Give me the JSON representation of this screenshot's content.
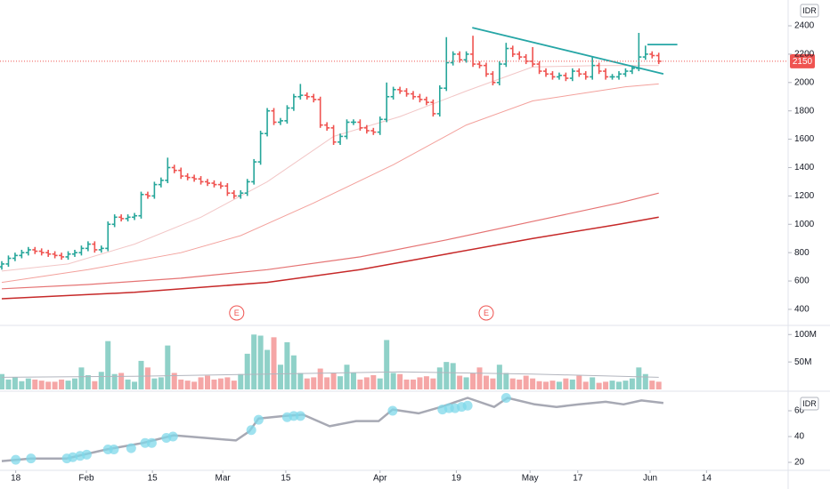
{
  "chart_data": [
    {
      "type": "ohlc",
      "unit": "IDR",
      "up_color": "#26a69a",
      "down_color": "#ef5350",
      "xlim": [
        -0.27,
        118.5
      ],
      "ylim": [
        293,
        2582
      ],
      "yticks": [
        400,
        600,
        800,
        1000,
        1200,
        1400,
        1600,
        1800,
        2000,
        2200,
        2400
      ],
      "open": [
        700,
        720,
        760,
        780,
        800,
        820,
        810,
        800,
        790,
        780,
        770,
        790,
        800,
        830,
        860,
        820,
        830,
        1000,
        1050,
        1040,
        1050,
        1060,
        1210,
        1200,
        1280,
        1310,
        1400,
        1380,
        1340,
        1330,
        1320,
        1300,
        1290,
        1280,
        1270,
        1220,
        1200,
        1220,
        1300,
        1440,
        1640,
        1800,
        1720,
        1730,
        1820,
        1900,
        1910,
        1900,
        1880,
        1700,
        1680,
        1580,
        1620,
        1720,
        1720,
        1680,
        1660,
        1650,
        1740,
        1900,
        1950,
        1940,
        1920,
        1900,
        1880,
        1860,
        1780,
        1960,
        2140,
        2200,
        2160,
        2200,
        2130,
        2120,
        2060,
        2000,
        2130,
        2240,
        2200,
        2180,
        2150,
        2130,
        2080,
        2060,
        2040,
        2050,
        2030,
        2080,
        2060,
        2040,
        2120,
        2080,
        2040,
        2040,
        2060,
        2080,
        2100,
        2180,
        2200,
        2190
      ],
      "high": [
        740,
        780,
        800,
        820,
        840,
        840,
        830,
        820,
        810,
        800,
        810,
        820,
        850,
        880,
        880,
        850,
        1020,
        1070,
        1070,
        1070,
        1080,
        1230,
        1230,
        1300,
        1330,
        1470,
        1420,
        1400,
        1360,
        1350,
        1340,
        1320,
        1310,
        1300,
        1290,
        1240,
        1240,
        1320,
        1460,
        1660,
        1820,
        1820,
        1750,
        1840,
        1920,
        1990,
        1930,
        1920,
        1900,
        1720,
        1700,
        1640,
        1740,
        1740,
        1740,
        1700,
        1680,
        1760,
        2000,
        1970,
        1970,
        1960,
        1940,
        1920,
        1900,
        1880,
        1980,
        2320,
        2220,
        2220,
        2220,
        2330,
        2150,
        2140,
        2080,
        2150,
        2280,
        2260,
        2220,
        2200,
        2250,
        2150,
        2100,
        2080,
        2070,
        2070,
        2100,
        2100,
        2080,
        2180,
        2140,
        2100,
        2060,
        2080,
        2100,
        2120,
        2350,
        2260,
        2220,
        2210
      ],
      "low": [
        680,
        700,
        740,
        760,
        780,
        790,
        780,
        770,
        760,
        750,
        750,
        770,
        780,
        810,
        800,
        800,
        810,
        980,
        1020,
        1020,
        1030,
        1040,
        1180,
        1180,
        1260,
        1290,
        1360,
        1320,
        1310,
        1300,
        1280,
        1270,
        1260,
        1250,
        1200,
        1180,
        1180,
        1200,
        1280,
        1420,
        1620,
        1700,
        1700,
        1710,
        1800,
        1880,
        1880,
        1860,
        1680,
        1660,
        1560,
        1560,
        1600,
        1700,
        1660,
        1640,
        1630,
        1630,
        1720,
        1880,
        1920,
        1900,
        1880,
        1860,
        1840,
        1760,
        1760,
        1940,
        2120,
        2140,
        2140,
        2110,
        2100,
        2040,
        1980,
        1980,
        2110,
        2180,
        2160,
        2130,
        2110,
        2060,
        2040,
        2020,
        2020,
        2010,
        2010,
        2040,
        2020,
        2020,
        2060,
        2020,
        2020,
        2020,
        2040,
        2060,
        2080,
        2160,
        2170,
        2130
      ],
      "close": [
        720,
        760,
        780,
        800,
        820,
        810,
        800,
        790,
        780,
        770,
        790,
        800,
        830,
        860,
        820,
        830,
        1000,
        1050,
        1040,
        1050,
        1060,
        1210,
        1200,
        1280,
        1310,
        1400,
        1380,
        1340,
        1330,
        1320,
        1300,
        1290,
        1280,
        1270,
        1220,
        1200,
        1220,
        1300,
        1440,
        1640,
        1800,
        1720,
        1730,
        1820,
        1900,
        1910,
        1900,
        1880,
        1700,
        1680,
        1580,
        1620,
        1720,
        1720,
        1680,
        1660,
        1650,
        1740,
        1900,
        1950,
        1940,
        1920,
        1900,
        1880,
        1860,
        1780,
        1960,
        2140,
        2200,
        2160,
        2200,
        2130,
        2120,
        2060,
        2000,
        2130,
        2240,
        2200,
        2180,
        2150,
        2130,
        2080,
        2060,
        2040,
        2050,
        2030,
        2080,
        2060,
        2040,
        2120,
        2080,
        2040,
        2040,
        2060,
        2080,
        2100,
        2180,
        2200,
        2190,
        2150
      ],
      "series": [
        {
          "color": "#f2c6c6",
          "width": 1,
          "x": [
            0,
            10,
            20,
            30,
            40,
            50,
            60,
            70,
            80,
            90,
            99
          ],
          "values": [
            670,
            720,
            860,
            1050,
            1300,
            1620,
            1760,
            1940,
            2110,
            2120,
            2120
          ]
        },
        {
          "color": "#f3a19c",
          "width": 1,
          "x": [
            0,
            13,
            27,
            36,
            47,
            59,
            70,
            80,
            94,
            99
          ],
          "values": [
            590,
            680,
            800,
            920,
            1150,
            1420,
            1700,
            1870,
            1970,
            1990
          ]
        },
        {
          "color": "#e57373",
          "width": 1.2,
          "x": [
            0,
            13,
            27,
            40,
            54,
            67,
            80,
            93,
            99
          ],
          "values": [
            545,
            575,
            620,
            680,
            770,
            890,
            1020,
            1150,
            1220
          ]
        },
        {
          "color": "#c62828",
          "width": 1.5,
          "x": [
            0,
            20,
            40,
            54,
            67,
            80,
            93,
            99
          ],
          "values": [
            475,
            520,
            590,
            680,
            790,
            900,
            1000,
            1050
          ]
        }
      ],
      "trendlines": [
        {
          "color": "#26a6a6",
          "x": [
            70.9,
            99.7
          ],
          "values": [
            2387,
            2061
          ]
        },
        {
          "color": "#26a6a6",
          "x": [
            97.3,
            101.8
          ],
          "values": [
            2268,
            2268
          ]
        }
      ],
      "events": [
        {
          "x": 35.4,
          "label": "E"
        },
        {
          "x": 73,
          "label": "E"
        }
      ]
    },
    {
      "type": "bar",
      "up_color": "#8fd1c8",
      "down_color": "#f5a6a6",
      "xlim": [
        -0.27,
        118.5
      ],
      "ylim": [
        0,
        115
      ],
      "yticks": [
        {
          "value": 50,
          "label": "50M"
        },
        {
          "value": 100,
          "label": "100M"
        }
      ],
      "values": [
        28,
        18,
        22,
        15,
        20,
        18,
        16,
        14,
        14,
        18,
        16,
        20,
        40,
        26,
        15,
        32,
        88,
        28,
        30,
        18,
        14,
        52,
        40,
        20,
        22,
        80,
        30,
        18,
        16,
        14,
        22,
        25,
        18,
        20,
        22,
        16,
        28,
        65,
        100,
        98,
        72,
        95,
        45,
        86,
        62,
        30,
        20,
        22,
        38,
        22,
        30,
        24,
        45,
        30,
        18,
        22,
        26,
        20,
        90,
        30,
        28,
        18,
        18,
        22,
        24,
        20,
        40,
        50,
        48,
        25,
        22,
        30,
        40,
        25,
        20,
        45,
        30,
        20,
        18,
        25,
        20,
        15,
        14,
        16,
        14,
        20,
        18,
        25,
        14,
        22,
        12,
        14,
        16,
        14,
        16,
        20,
        40,
        28,
        16,
        14
      ],
      "series": [
        {
          "color": "#b2b5be",
          "x": [
            0,
            20,
            40,
            60,
            80,
            99
          ],
          "values": [
            22,
            24,
            28,
            32,
            28,
            22
          ]
        }
      ]
    },
    {
      "type": "line",
      "unit": "IDR",
      "xlim": [
        -0.27,
        118.5
      ],
      "ylim": [
        14.5,
        73.8
      ],
      "yticks": [
        20,
        40,
        60
      ],
      "xticks": [
        {
          "value": 2.1,
          "label": "18"
        },
        {
          "value": 12.75,
          "label": "Feb"
        },
        {
          "value": 22.7,
          "label": "15"
        },
        {
          "value": 33.3,
          "label": "Mar"
        },
        {
          "value": 42.8,
          "label": "15"
        },
        {
          "value": 57,
          "label": "Apr"
        },
        {
          "value": 68.5,
          "label": "19"
        },
        {
          "value": 79.6,
          "label": "May"
        },
        {
          "value": 86.8,
          "label": "17"
        },
        {
          "value": 97.7,
          "label": "Jun"
        },
        {
          "value": 106.2,
          "label": "14"
        }
      ],
      "series": [
        {
          "color": "#a7a9b4",
          "x": [
            0,
            4.4,
            9.8,
            13.2,
            15.8,
            21.2,
            25.9,
            30.6,
            35.3,
            37.3,
            38.7,
            42.7,
            45.4,
            49.4,
            53.4,
            56.8,
            58.9,
            62.8,
            66.2,
            70.2,
            74.2,
            76.2,
            80.3,
            83.6,
            87,
            91,
            93.7,
            96.4,
            99.7
          ],
          "values": [
            21,
            23,
            23,
            27,
            30,
            35,
            41,
            39,
            37,
            44,
            54,
            56,
            57,
            48,
            52,
            52,
            61,
            58,
            63,
            70,
            63,
            70,
            65,
            63,
            65,
            67,
            65,
            68,
            66
          ]
        }
      ],
      "signals": {
        "color": "#7fd8ea",
        "x": [
          2.1,
          4.4,
          9.8,
          10.7,
          11.8,
          12.8,
          16,
          16.9,
          19.5,
          21.6,
          22.6,
          24.8,
          25.8,
          37.6,
          38.7,
          43,
          44,
          45,
          58.9,
          66.4,
          67.4,
          68.3,
          69.3,
          70.2,
          76
        ],
        "values": [
          22,
          23,
          23,
          24,
          25,
          26,
          30,
          30,
          31,
          35,
          35,
          39,
          40,
          45,
          53,
          55,
          56,
          56,
          60,
          61,
          62,
          62,
          63,
          64,
          70
        ]
      }
    }
  ]
}
